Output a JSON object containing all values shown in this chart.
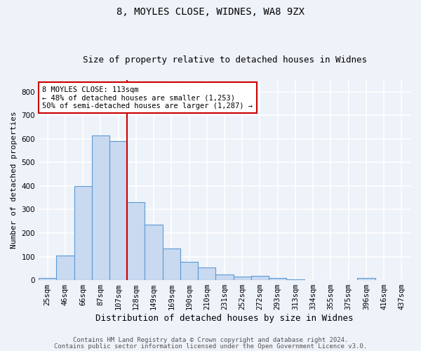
{
  "title1": "8, MOYLES CLOSE, WIDNES, WA8 9ZX",
  "title2": "Size of property relative to detached houses in Widnes",
  "xlabel": "Distribution of detached houses by size in Widnes",
  "ylabel": "Number of detached properties",
  "categories": [
    "25sqm",
    "46sqm",
    "66sqm",
    "87sqm",
    "107sqm",
    "128sqm",
    "149sqm",
    "169sqm",
    "190sqm",
    "210sqm",
    "231sqm",
    "252sqm",
    "272sqm",
    "293sqm",
    "313sqm",
    "334sqm",
    "355sqm",
    "375sqm",
    "396sqm",
    "416sqm",
    "437sqm"
  ],
  "values": [
    8,
    105,
    400,
    615,
    590,
    330,
    237,
    135,
    77,
    53,
    25,
    14,
    17,
    8,
    4,
    1,
    0,
    0,
    8,
    0,
    0
  ],
  "bar_color": "#c9d9f0",
  "bar_edge_color": "#5b9bd5",
  "background_color": "#eef2f9",
  "grid_color": "#ffffff",
  "vline_x": 4.5,
  "vline_color": "#cc0000",
  "annotation_text": "8 MOYLES CLOSE: 113sqm\n← 48% of detached houses are smaller (1,253)\n50% of semi-detached houses are larger (1,287) →",
  "annotation_box_color": "#ffffff",
  "annotation_box_edge": "#cc0000",
  "footnote1": "Contains HM Land Registry data © Crown copyright and database right 2024.",
  "footnote2": "Contains public sector information licensed under the Open Government Licence v3.0.",
  "ylim": [
    0,
    850
  ],
  "title1_fontsize": 10,
  "title2_fontsize": 9,
  "xlabel_fontsize": 9,
  "ylabel_fontsize": 8,
  "tick_fontsize": 7.5,
  "annotation_fontsize": 7.5,
  "footnote_fontsize": 6.5
}
